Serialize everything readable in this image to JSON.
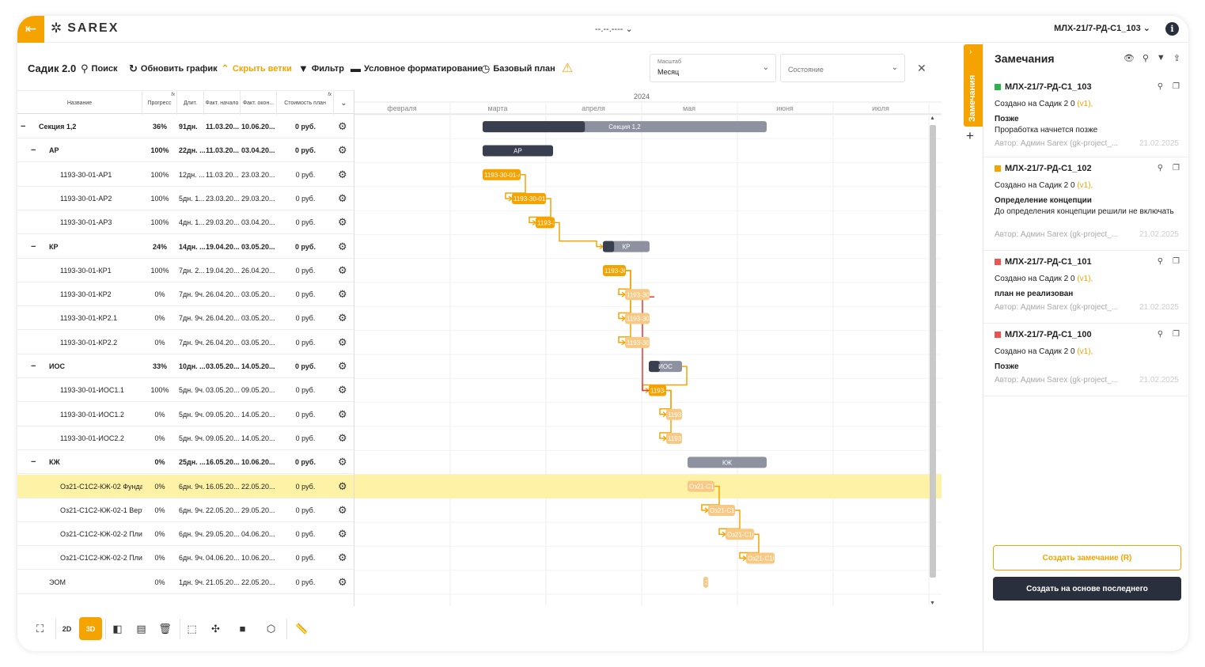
{
  "header": {
    "logo": "SAREX",
    "date_select": "--.--.----",
    "project_select": "МЛХ-21/7-РД-С1_103"
  },
  "toolbar": {
    "title": "Садик 2.0",
    "search": "Поиск",
    "refresh": "Обновить график",
    "hide_branches": "Скрыть ветки",
    "filter": "Фильтр",
    "conditional_format": "Условное форматирование",
    "baseline": "Базовый план",
    "scale_label": "Масштаб",
    "scale_value": "Месяц",
    "state_placeholder": "Состояние"
  },
  "grid": {
    "columns": [
      "Название",
      "Прогресс",
      "Длит.",
      "Факт. начало",
      "Факт. окон...",
      "Стоимость план"
    ],
    "rows": [
      {
        "name": "Секция 1,2",
        "progress": "36%",
        "dur": "91дн.",
        "start": "11.03.20...",
        "end": "10.06.20...",
        "cost": "0 руб.",
        "level": 0,
        "group": true
      },
      {
        "name": "АР",
        "progress": "100%",
        "dur": "22дн. ...",
        "start": "11.03.20...",
        "end": "03.04.20...",
        "cost": "0 руб.",
        "level": 1,
        "group": true
      },
      {
        "name": "1193-30-01-АР1",
        "progress": "100%",
        "dur": "12дн. ...",
        "start": "11.03.20...",
        "end": "23.03.20...",
        "cost": "0 руб.",
        "level": 2,
        "group": false
      },
      {
        "name": "1193-30-01-АР2",
        "progress": "100%",
        "dur": "5дн. 1...",
        "start": "23.03.20...",
        "end": "29.03.20...",
        "cost": "0 руб.",
        "level": 2,
        "group": false
      },
      {
        "name": "1193-30-01-АР3",
        "progress": "100%",
        "dur": "4дн. 1...",
        "start": "29.03.20...",
        "end": "03.04.20...",
        "cost": "0 руб.",
        "level": 2,
        "group": false
      },
      {
        "name": "КР",
        "progress": "24%",
        "dur": "14дн. ...",
        "start": "19.04.20...",
        "end": "03.05.20...",
        "cost": "0 руб.",
        "level": 1,
        "group": true
      },
      {
        "name": "1193-30-01-КР1",
        "progress": "100%",
        "dur": "7дн. 2...",
        "start": "19.04.20...",
        "end": "26.04.20...",
        "cost": "0 руб.",
        "level": 2,
        "group": false
      },
      {
        "name": "1193-30-01-КР2",
        "progress": "0%",
        "dur": "7дн. 9ч.",
        "start": "26.04.20...",
        "end": "03.05.20...",
        "cost": "0 руб.",
        "level": 2,
        "group": false
      },
      {
        "name": "1193-30-01-КР2.1",
        "progress": "0%",
        "dur": "7дн. 9ч.",
        "start": "26.04.20...",
        "end": "03.05.20...",
        "cost": "0 руб.",
        "level": 2,
        "group": false
      },
      {
        "name": "1193-30-01-КР2.2",
        "progress": "0%",
        "dur": "7дн. 9ч.",
        "start": "26.04.20...",
        "end": "03.05.20...",
        "cost": "0 руб.",
        "level": 2,
        "group": false
      },
      {
        "name": "ИОС",
        "progress": "33%",
        "dur": "10дн. ...",
        "start": "03.05.20...",
        "end": "14.05.20...",
        "cost": "0 руб.",
        "level": 1,
        "group": true
      },
      {
        "name": "1193-30-01-ИОС1.1",
        "progress": "100%",
        "dur": "5дн. 9ч.",
        "start": "03.05.20...",
        "end": "09.05.20...",
        "cost": "0 руб.",
        "level": 2,
        "group": false
      },
      {
        "name": "1193-30-01-ИОС1.2",
        "progress": "0%",
        "dur": "5дн. 9ч.",
        "start": "09.05.20...",
        "end": "14.05.20...",
        "cost": "0 руб.",
        "level": 2,
        "group": false
      },
      {
        "name": "1193-30-01-ИОС2.2",
        "progress": "0%",
        "dur": "5дн. 9ч.",
        "start": "09.05.20...",
        "end": "14.05.20...",
        "cost": "0 руб.",
        "level": 2,
        "group": false
      },
      {
        "name": "КЖ",
        "progress": "0%",
        "dur": "25дн. ...",
        "start": "16.05.20...",
        "end": "10.06.20...",
        "cost": "0 руб.",
        "level": 1,
        "group": true
      },
      {
        "name": "Оз21-С1С2-КЖ-02 Фунда",
        "progress": "0%",
        "dur": "6дн. 9ч.",
        "start": "16.05.20...",
        "end": "22.05.20...",
        "cost": "0 руб.",
        "level": 2,
        "group": false,
        "selected": true
      },
      {
        "name": "Оз21-С1С2-КЖ-02-1 Верт",
        "progress": "0%",
        "dur": "6дн. 9ч.",
        "start": "22.05.20...",
        "end": "29.05.20...",
        "cost": "0 руб.",
        "level": 2,
        "group": false
      },
      {
        "name": "Оз21-С1С2-КЖ-02-2 Пли",
        "progress": "0%",
        "dur": "6дн. 9ч.",
        "start": "29.05.20...",
        "end": "04.06.20...",
        "cost": "0 руб.",
        "level": 2,
        "group": false
      },
      {
        "name": "Оз21-С1С2-КЖ-02-2 Пли",
        "progress": "0%",
        "dur": "6дн. 9ч.",
        "start": "04.06.20...",
        "end": "10.06.20...",
        "cost": "0 руб.",
        "level": 2,
        "group": false
      },
      {
        "name": "ЭОМ",
        "progress": "0%",
        "dur": "1дн. 9ч.",
        "start": "21.05.20...",
        "end": "22.05.20...",
        "cost": "0 руб.",
        "level": 1,
        "group": false
      }
    ]
  },
  "gantt": {
    "year": "2024",
    "months": [
      "февраля",
      "марта",
      "апреля",
      "мая",
      "июня",
      "июля"
    ],
    "bars": [
      {
        "label": "Секция 1,2",
        "type": "summary",
        "progress": 0.36
      },
      {
        "label": "АР",
        "type": "summary",
        "progress": 1
      },
      {
        "label": "1193-30-01-АР1",
        "type": "task",
        "progress": 1
      },
      {
        "label": "1193-30-01-АР2",
        "type": "task",
        "progress": 1
      },
      {
        "label": "1193-30-01-АР3",
        "type": "task",
        "progress": 1
      },
      {
        "label": "КР",
        "type": "summary",
        "progress": 0.24
      },
      {
        "label": "1193-30-01-КР1",
        "type": "task",
        "progress": 1
      },
      {
        "label": "1193-30-01-КР2",
        "type": "task",
        "progress": 0
      },
      {
        "label": "1193-30-01-КР2.1",
        "type": "task",
        "progress": 0
      },
      {
        "label": "1193-30-01-КР2.2",
        "type": "task",
        "progress": 0
      },
      {
        "label": "ИОС",
        "type": "summary",
        "progress": 0.33
      },
      {
        "label": "1193-30-01-ИОС1.1",
        "type": "task",
        "progress": 1
      },
      {
        "label": "1193-30-01-ИОС1.2",
        "type": "task",
        "progress": 0
      },
      {
        "label": "1193-30-01-ИОС2.2",
        "type": "task",
        "progress": 0
      },
      {
        "label": "КЖ",
        "type": "summary",
        "progress": 0
      },
      {
        "label": "Оз21-С1С2-КЖ-02 Фунда",
        "type": "task",
        "progress": 0
      },
      {
        "label": "Оз21-С1С2-КЖ-02-1 Верт",
        "type": "task",
        "progress": 0
      },
      {
        "label": "Оз21-С1С2-КЖ-02-2 Пли",
        "type": "task",
        "progress": 0
      },
      {
        "label": "Оз21-С1С2-КЖ-02-2 Пли",
        "type": "task",
        "progress": 0
      },
      {
        "label": "ЭОМ",
        "type": "task",
        "progress": 0
      }
    ]
  },
  "panel": {
    "tab_label": "Замечания",
    "title": "Замечания",
    "remarks": [
      {
        "id": "МЛХ-21/7-РД-С1_103",
        "color": "#2fb24a",
        "created": "Создано на Садик 2 0",
        "version": "(v1),",
        "lines": [
          {
            "text": "Позже",
            "bold": true
          },
          {
            "text": "Проработка начнется позже",
            "bold": false
          }
        ],
        "author": "Автор: Админ Sarex (gk-project_...",
        "date": "21.02.2025"
      },
      {
        "id": "МЛХ-21/7-РД-С1_102",
        "color": "#f5a300",
        "created": "Создано на Садик 2 0",
        "version": "(v1),",
        "lines": [
          {
            "text": "Определение концепции",
            "bold": true
          },
          {
            "text": "До определения концепции решили не включать",
            "bold": false
          }
        ],
        "author": "Автор: Админ Sarex (gk-project_...",
        "date": "21.02.2025"
      },
      {
        "id": "МЛХ-21/7-РД-С1_101",
        "color": "#ef5350",
        "created": "Создано на Садик 2 0",
        "version": "(v1),",
        "lines": [
          {
            "text": "план не реализован",
            "bold": true
          }
        ],
        "author": "Автор: Админ Sarex (gk-project_...",
        "date": "21.02.2025"
      },
      {
        "id": "МЛХ-21/7-РД-С1_100",
        "color": "#ef5350",
        "created": "Создано на Садик 2 0",
        "version": "(v1),",
        "lines": [
          {
            "text": "Позже",
            "bold": true
          }
        ],
        "author": "Автор: Админ Sarex (gk-project_...",
        "date": "21.02.2025"
      }
    ],
    "create_button": "Создать замечание (R)",
    "create_last_button": "Создать на основе последнего"
  },
  "bottom_toolbar": {
    "icons": [
      "fit-view-icon",
      "2d-view-icon",
      "3d-view-icon",
      "split-view-icon",
      "layers-icon",
      "trash-icon",
      "selection-icon",
      "explode-icon",
      "camera-icon",
      "cube-icon",
      "ruler-icon"
    ]
  },
  "colors": {
    "accent": "#f5a300",
    "dark": "#2a2f3e",
    "summary": "#8d91a0",
    "selected_row": "#fef2a6"
  }
}
